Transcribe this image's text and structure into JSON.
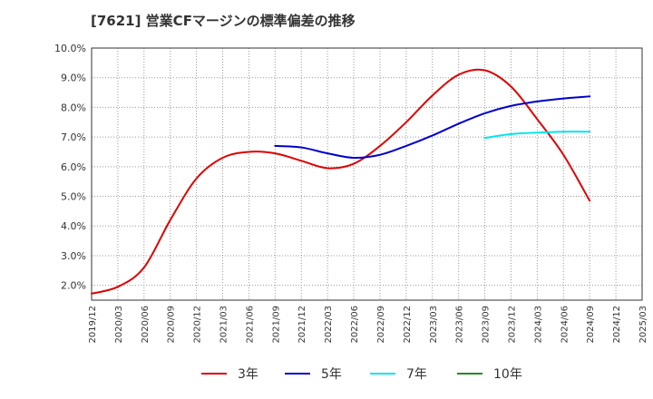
{
  "chart_data": {
    "type": "line",
    "title": "[7621]  営業CFマージンの標準偏差の推移",
    "xlabel": "",
    "ylabel": "",
    "ylim": [
      1.5,
      10.0
    ],
    "y_ticks": [
      "2.0%",
      "3.0%",
      "4.0%",
      "5.0%",
      "6.0%",
      "7.0%",
      "8.0%",
      "9.0%",
      "10.0%"
    ],
    "y_tick_values": [
      2.0,
      3.0,
      4.0,
      5.0,
      6.0,
      7.0,
      8.0,
      9.0,
      10.0
    ],
    "x_ticks": [
      "2019/12",
      "2020/03",
      "2020/06",
      "2020/09",
      "2020/12",
      "2021/03",
      "2021/06",
      "2021/09",
      "2021/12",
      "2022/03",
      "2022/06",
      "2022/09",
      "2022/12",
      "2023/03",
      "2023/06",
      "2023/09",
      "2023/12",
      "2024/03",
      "2024/06",
      "2024/09",
      "2024/12",
      "2025/03"
    ],
    "grid": true,
    "legend_position": "bottom",
    "series": [
      {
        "name": "3年",
        "color": "#dd0000",
        "points": [
          [
            "2019/12",
            1.72
          ],
          [
            "2020/03",
            1.95
          ],
          [
            "2020/06",
            2.6
          ],
          [
            "2020/09",
            4.2
          ],
          [
            "2020/12",
            5.6
          ],
          [
            "2021/03",
            6.3
          ],
          [
            "2021/06",
            6.5
          ],
          [
            "2021/09",
            6.45
          ],
          [
            "2021/12",
            6.2
          ],
          [
            "2022/03",
            5.95
          ],
          [
            "2022/06",
            6.1
          ],
          [
            "2022/09",
            6.7
          ],
          [
            "2022/12",
            7.5
          ],
          [
            "2023/03",
            8.4
          ],
          [
            "2023/06",
            9.1
          ],
          [
            "2023/09",
            9.25
          ],
          [
            "2023/12",
            8.7
          ],
          [
            "2024/03",
            7.6
          ],
          [
            "2024/06",
            6.4
          ],
          [
            "2024/09",
            4.85
          ]
        ]
      },
      {
        "name": "5年",
        "color": "#0000cc",
        "points": [
          [
            "2021/09",
            6.7
          ],
          [
            "2021/12",
            6.65
          ],
          [
            "2022/03",
            6.45
          ],
          [
            "2022/06",
            6.3
          ],
          [
            "2022/09",
            6.4
          ],
          [
            "2022/12",
            6.7
          ],
          [
            "2023/03",
            7.05
          ],
          [
            "2023/06",
            7.45
          ],
          [
            "2023/09",
            7.8
          ],
          [
            "2023/12",
            8.05
          ],
          [
            "2024/03",
            8.2
          ],
          [
            "2024/06",
            8.3
          ],
          [
            "2024/09",
            8.37
          ]
        ]
      },
      {
        "name": "7年",
        "color": "#00e5ee",
        "points": [
          [
            "2023/09",
            6.97
          ],
          [
            "2023/12",
            7.1
          ],
          [
            "2024/03",
            7.15
          ],
          [
            "2024/06",
            7.18
          ],
          [
            "2024/09",
            7.18
          ]
        ]
      },
      {
        "name": "10年",
        "color": "#228b22",
        "points": []
      }
    ]
  }
}
